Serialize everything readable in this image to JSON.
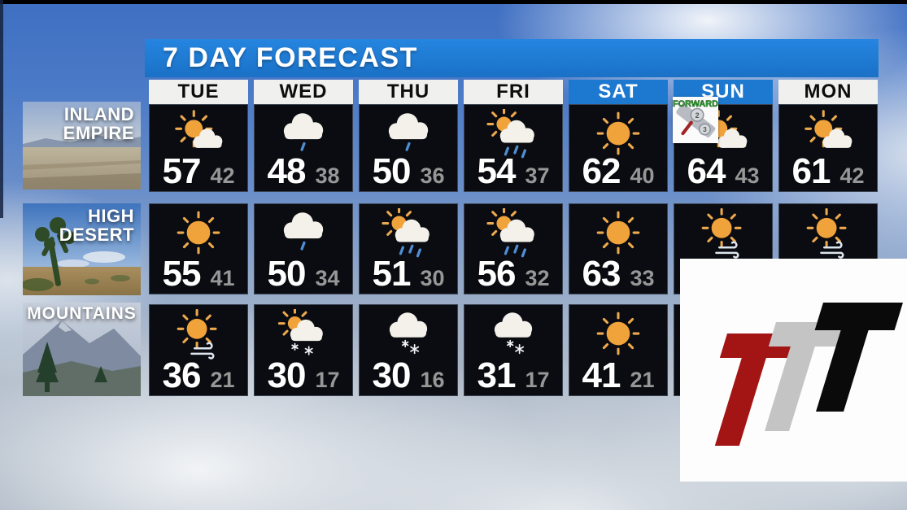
{
  "title": "7 DAY FORECAST",
  "days": [
    {
      "label": "TUE",
      "highlight": false
    },
    {
      "label": "WED",
      "highlight": false
    },
    {
      "label": "THU",
      "highlight": false
    },
    {
      "label": "FRI",
      "highlight": false
    },
    {
      "label": "SAT",
      "highlight": true
    },
    {
      "label": "SUN",
      "highlight": true
    },
    {
      "label": "MON",
      "highlight": false
    }
  ],
  "regions": [
    {
      "name": "Inland Empire",
      "label_lines": [
        "INLAND",
        "EMPIRE"
      ]
    },
    {
      "name": "High Desert",
      "label_lines": [
        "HIGH",
        "DESERT"
      ]
    },
    {
      "name": "Mountains",
      "label_lines": [
        "MOUNTAINS"
      ]
    }
  ],
  "forecast": [
    {
      "region": "Inland Empire",
      "cells": [
        {
          "day": "TUE",
          "icon": "partly-sunny",
          "high": "57",
          "low": "42"
        },
        {
          "day": "WED",
          "icon": "cloud-rain",
          "high": "48",
          "low": "38"
        },
        {
          "day": "THU",
          "icon": "cloud-rain",
          "high": "50",
          "low": "36"
        },
        {
          "day": "FRI",
          "icon": "sun-cloud-rain",
          "high": "54",
          "low": "37"
        },
        {
          "day": "SAT",
          "icon": "sunny",
          "high": "62",
          "low": "40"
        },
        {
          "day": "SUN",
          "icon": "partly-sunny",
          "high": "64",
          "low": "43",
          "badge": "FORWARD"
        },
        {
          "day": "MON",
          "icon": "partly-sunny",
          "high": "61",
          "low": "42"
        }
      ]
    },
    {
      "region": "High Desert",
      "cells": [
        {
          "day": "TUE",
          "icon": "sunny",
          "high": "55",
          "low": "41"
        },
        {
          "day": "WED",
          "icon": "cloud-rain",
          "high": "50",
          "low": "34"
        },
        {
          "day": "THU",
          "icon": "sun-cloud-rain",
          "high": "51",
          "low": "30"
        },
        {
          "day": "FRI",
          "icon": "sun-cloud-rain",
          "high": "56",
          "low": "32"
        },
        {
          "day": "SAT",
          "icon": "sunny",
          "high": "63",
          "low": "33"
        },
        {
          "day": "SUN",
          "icon": "sun-wind",
          "high": "",
          "low": ""
        },
        {
          "day": "MON",
          "icon": "sun-wind",
          "high": "",
          "low": ""
        }
      ]
    },
    {
      "region": "Mountains",
      "cells": [
        {
          "day": "TUE",
          "icon": "sun-wind",
          "high": "36",
          "low": "21"
        },
        {
          "day": "WED",
          "icon": "sun-cloud-snow",
          "high": "30",
          "low": "17"
        },
        {
          "day": "THU",
          "icon": "cloud-snow",
          "high": "30",
          "low": "16"
        },
        {
          "day": "FRI",
          "icon": "cloud-snow",
          "high": "31",
          "low": "17"
        },
        {
          "day": "SAT",
          "icon": "sunny",
          "high": "41",
          "low": "21"
        },
        {
          "day": "SUN",
          "icon": "none",
          "high": "",
          "low": ""
        },
        {
          "day": "MON",
          "icon": "none",
          "high": "",
          "low": ""
        }
      ]
    }
  ],
  "sun_badge": {
    "text": "FORWARD",
    "clock_numbers": [
      "2",
      "3"
    ]
  },
  "colors": {
    "banner_blue": "#1d79cf",
    "header_white": "#f0f0ee",
    "cell_dark": "#0b0c11",
    "high_temp": "#ffffff",
    "low_temp": "#979797",
    "sun_orange": "#f0a23b",
    "rain_blue": "#4f8fd6",
    "badge_green": "#39b53a",
    "logo_red": "#a31515",
    "logo_gray": "#c4c4c4",
    "logo_black": "#0a0a0a"
  }
}
